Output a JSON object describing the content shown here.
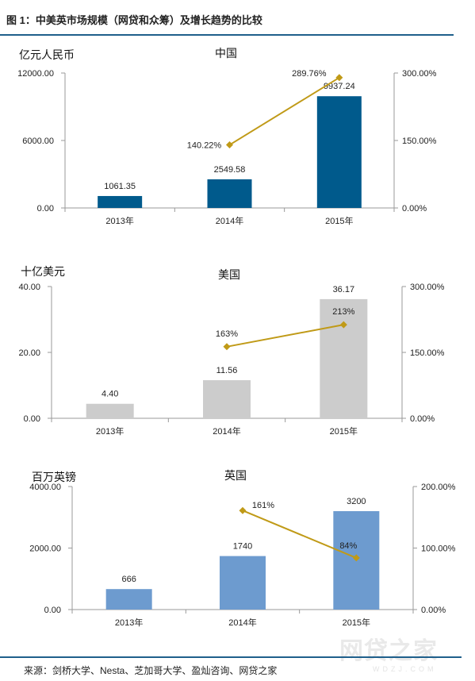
{
  "figure": {
    "title": "图 1：中美英市场规模（网贷和众筹）及增长趋势的比较",
    "source": "来源：剑桥大学、Nesta、芝加哥大学、盈灿咨询、网贷之家",
    "watermark": "网贷之家",
    "watermark_sub": "WDZJ.COM"
  },
  "chart_data": [
    {
      "type": "bar",
      "title": "中国",
      "ylabel": "亿元人民币",
      "categories": [
        "2013年",
        "2014年",
        "2015年"
      ],
      "series": [
        {
          "values": [
            1061.35,
            2549.58,
            9937.24
          ],
          "labels": [
            "1061.35",
            "2549.58",
            "9937.24"
          ],
          "color": "#005a8c"
        },
        {
          "type": "line",
          "axis": "right",
          "x": [
            "2014年",
            "2015年"
          ],
          "values": [
            140.22,
            289.76
          ],
          "labels": [
            "140.22%",
            "289.76%"
          ],
          "color": "#c09a17"
        }
      ],
      "ylim": [
        0,
        12000
      ],
      "yticks": [
        "0.00",
        "6000.00",
        "12000.00"
      ],
      "y2lim": [
        0,
        300
      ],
      "y2ticks": [
        "0.00%",
        "150.00%",
        "300.00%"
      ]
    },
    {
      "type": "bar",
      "title": "美国",
      "ylabel": "十亿美元",
      "categories": [
        "2013年",
        "2014年",
        "2015年"
      ],
      "series": [
        {
          "values": [
            4.4,
            11.56,
            36.17
          ],
          "labels": [
            "4.40",
            "11.56",
            "36.17"
          ],
          "color": "#cccccc"
        },
        {
          "type": "line",
          "axis": "right",
          "x": [
            "2014年",
            "2015年"
          ],
          "values": [
            163,
            213
          ],
          "labels": [
            "163%",
            "213%"
          ],
          "color": "#c09a17"
        }
      ],
      "ylim": [
        0,
        40
      ],
      "yticks": [
        "0.00",
        "20.00",
        "40.00"
      ],
      "y2lim": [
        0,
        300
      ],
      "y2ticks": [
        "0.00%",
        "150.00%",
        "300.00%"
      ]
    },
    {
      "type": "bar",
      "title": "英国",
      "ylabel": "百万英镑",
      "categories": [
        "2013年",
        "2014年",
        "2015年"
      ],
      "series": [
        {
          "values": [
            666,
            1740,
            3200
          ],
          "labels": [
            "666",
            "1740",
            "3200"
          ],
          "color": "#6d9bcf"
        },
        {
          "type": "line",
          "axis": "right",
          "x": [
            "2014年",
            "2015年"
          ],
          "values": [
            161,
            84
          ],
          "labels": [
            "161%",
            "84%"
          ],
          "color": "#c09a17"
        }
      ],
      "ylim": [
        0,
        4000
      ],
      "yticks": [
        "0.00",
        "2000.00",
        "4000.00"
      ],
      "y2lim": [
        0,
        200
      ],
      "y2ticks": [
        "0.00%",
        "100.00%",
        "200.00%"
      ]
    }
  ]
}
